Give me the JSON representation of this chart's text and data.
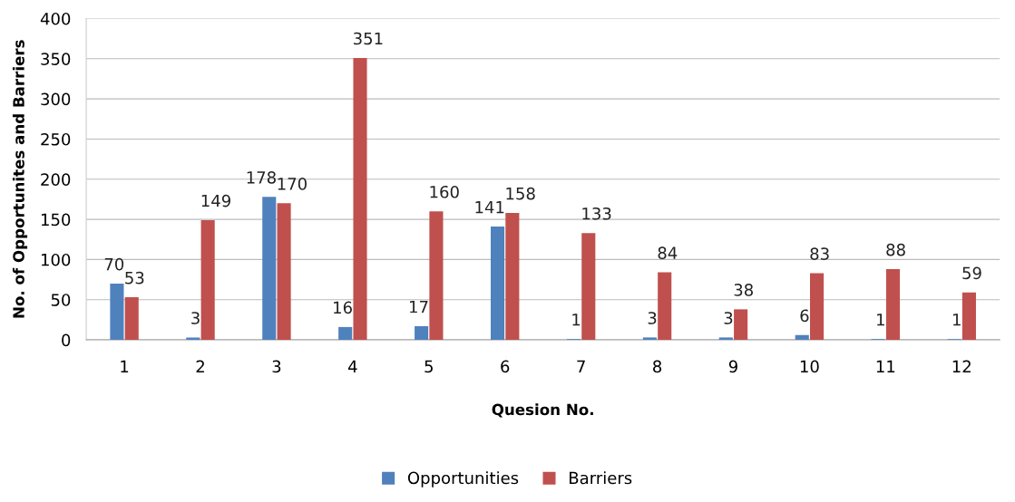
{
  "chart_data": {
    "type": "bar",
    "xlabel": "Quesion No.",
    "ylabel": "No. of Opportunites and Barriers",
    "categories": [
      "1",
      "2",
      "3",
      "4",
      "5",
      "6",
      "7",
      "8",
      "9",
      "10",
      "11",
      "12"
    ],
    "series": [
      {
        "name": "Opportunities",
        "color": "#4f81bd",
        "values": [
          70,
          3,
          178,
          16,
          17,
          141,
          1,
          3,
          3,
          6,
          1,
          1
        ]
      },
      {
        "name": "Barriers",
        "color": "#c0504d",
        "values": [
          53,
          149,
          170,
          351,
          160,
          158,
          133,
          84,
          38,
          83,
          88,
          59
        ]
      }
    ],
    "ylim": [
      0,
      400
    ],
    "yticks": [
      0,
      50,
      100,
      150,
      200,
      250,
      300,
      350,
      400
    ],
    "grid": "y",
    "legend": "bottom",
    "data_labels": true
  }
}
